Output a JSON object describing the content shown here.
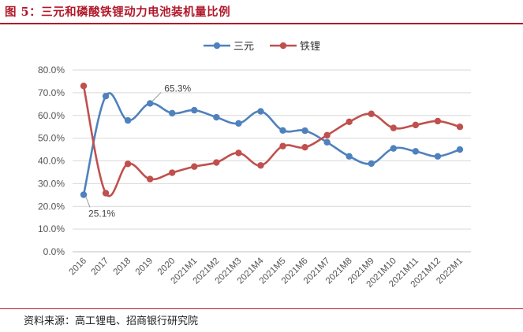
{
  "header": {
    "title": "图 5：三元和磷酸铁锂动力电池装机量比例"
  },
  "footer": {
    "source": "资料来源：高工锂电、招商银行研究院"
  },
  "chart_data": {
    "type": "line",
    "categories": [
      "2016",
      "2017",
      "2018",
      "2019",
      "2020",
      "2021M1",
      "2021M2",
      "2021M3",
      "2021M4",
      "2021M5",
      "2021M6",
      "2021M7",
      "2021M8",
      "2021M9",
      "2021M10",
      "2021M11",
      "2021M12",
      "2022M1"
    ],
    "series": [
      {
        "name": "三元",
        "color": "#4f81bd",
        "values": [
          25.1,
          68.5,
          57.8,
          65.3,
          61.0,
          62.3,
          59.2,
          56.5,
          61.8,
          53.4,
          53.3,
          48.2,
          42.0,
          38.8,
          45.5,
          44.2,
          42.0,
          45.0
        ]
      },
      {
        "name": "铁锂",
        "color": "#c0504d",
        "values": [
          73.0,
          25.8,
          38.7,
          32.0,
          34.8,
          37.5,
          39.3,
          43.5,
          38.0,
          46.5,
          46.0,
          51.3,
          57.2,
          60.7,
          54.5,
          55.8,
          57.5,
          55.0
        ]
      }
    ],
    "annotations": [
      {
        "series": 0,
        "index": 3,
        "text": "65.3%"
      },
      {
        "series": 0,
        "index": 0,
        "text": "25.1%"
      }
    ],
    "yticks": [
      "0.0%",
      "10.0%",
      "20.0%",
      "30.0%",
      "40.0%",
      "50.0%",
      "60.0%",
      "70.0%",
      "80.0%"
    ],
    "ylim": [
      0,
      80
    ],
    "xlabel": "",
    "ylabel": "",
    "grid": true,
    "legend": "top-center"
  }
}
